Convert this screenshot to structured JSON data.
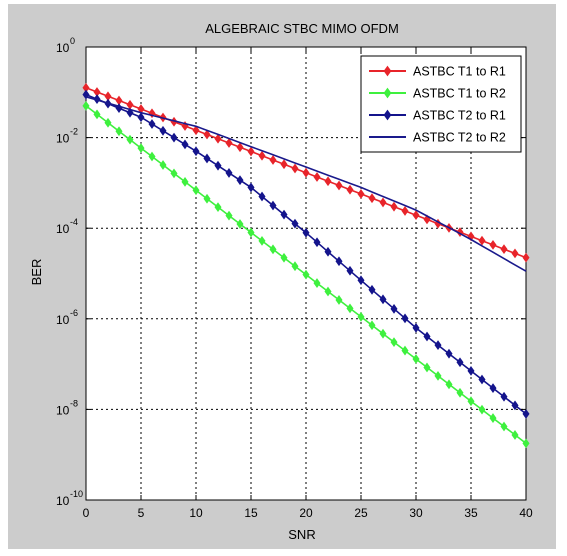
{
  "chart_data": {
    "type": "line",
    "title": "ALGEBRAIC STBC MIMO OFDM",
    "xlabel": "SNR",
    "ylabel": "BER",
    "xlim": [
      0,
      40
    ],
    "ylim": [
      1e-10,
      1
    ],
    "yscale": "log",
    "grid": true,
    "legend_position": "top-right",
    "x_ticks": [
      0,
      5,
      10,
      15,
      20,
      25,
      30,
      35,
      40
    ],
    "y_ticks": [
      {
        "base": "10",
        "exp": "0",
        "value": 1
      },
      {
        "base": "10",
        "exp": "-2",
        "value": 0.01
      },
      {
        "base": "10",
        "exp": "-4",
        "value": 0.0001
      },
      {
        "base": "10",
        "exp": "-6",
        "value": 1e-06
      },
      {
        "base": "10",
        "exp": "-8",
        "value": 1e-08
      },
      {
        "base": "10",
        "exp": "-10",
        "value": 1e-10
      }
    ],
    "x_step": 1,
    "series": [
      {
        "name": "ASTBC T1 to R1",
        "color": "#e8242a",
        "marker": "diamond",
        "anchors_x": [
          0,
          40
        ],
        "anchors_log10y": [
          -0.9,
          -4.65
        ]
      },
      {
        "name": "ASTBC T1 to R2",
        "color": "#3ef03e",
        "marker": "diamond",
        "anchors_x": [
          0,
          40
        ],
        "anchors_log10y": [
          -1.3,
          -8.75
        ]
      },
      {
        "name": "ASTBC T2 to R1",
        "color": "#14148c",
        "marker": "diamond",
        "anchors_x": [
          0,
          5,
          10,
          15,
          20,
          25,
          30,
          35,
          40
        ],
        "anchors_log10y": [
          -1.05,
          -1.55,
          -2.3,
          -3.1,
          -4.1,
          -5.15,
          -6.2,
          -7.15,
          -8.1
        ]
      },
      {
        "name": "ASTBC T2 to R2",
        "color": "#1a1a8c",
        "marker": "none",
        "anchors_x": [
          0,
          5,
          10,
          15,
          20,
          25,
          30,
          35,
          40
        ],
        "anchors_log10y": [
          -1.1,
          -1.45,
          -1.75,
          -2.2,
          -2.65,
          -3.1,
          -3.6,
          -4.25,
          -4.95
        ]
      }
    ]
  }
}
